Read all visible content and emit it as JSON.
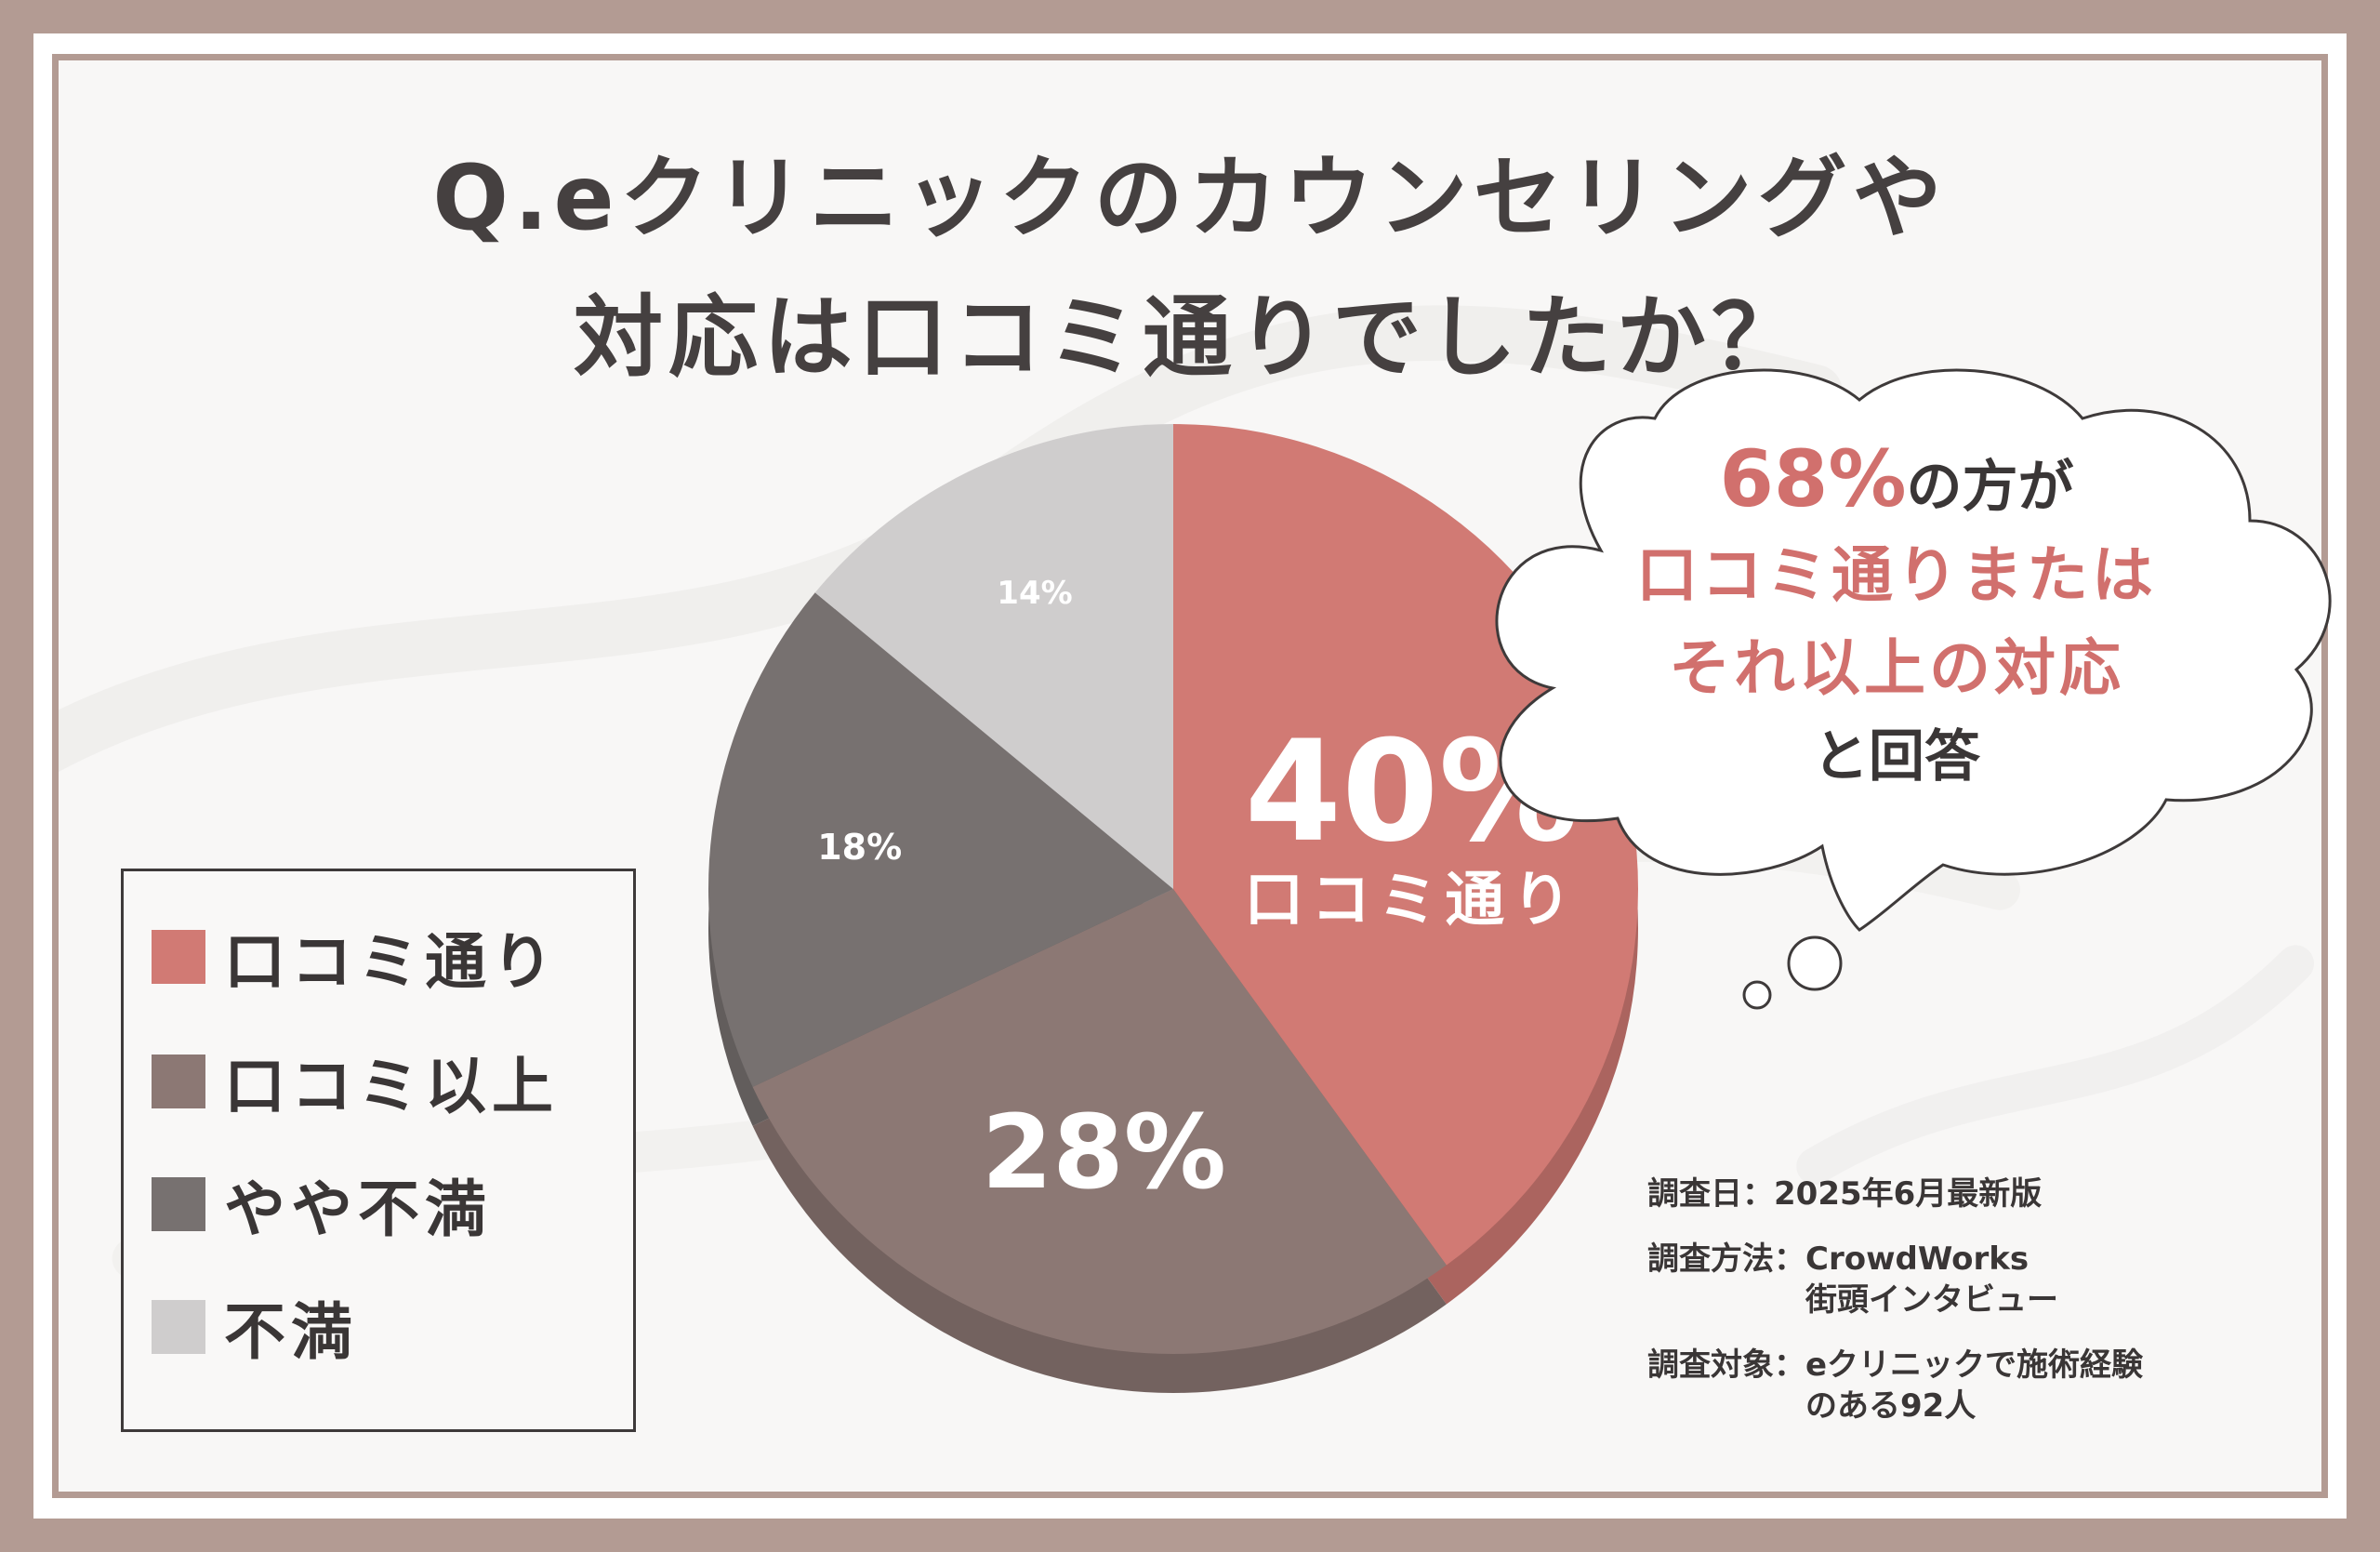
{
  "title": {
    "line1": "Q.eクリニックのカウンセリングや",
    "line2": "対応は口コミ通りでしたか？"
  },
  "chart_data": {
    "type": "pie",
    "categories": [
      "口コミ通り",
      "口コミ以上",
      "やや不満",
      "不満"
    ],
    "values": [
      40,
      28,
      18,
      14
    ],
    "value_labels": [
      "40%",
      "28%",
      "18%",
      "14%"
    ],
    "center_label": "口コミ通り",
    "colors": [
      "#d17a74",
      "#8c7874",
      "#777170",
      "#cfcdcd"
    ]
  },
  "legend": [
    {
      "label": "口コミ通り",
      "color": "#d17a74"
    },
    {
      "label": "口コミ以上",
      "color": "#8c7874"
    },
    {
      "label": "やや不満",
      "color": "#777170"
    },
    {
      "label": "不満",
      "color": "#cfcdcd"
    }
  ],
  "callout": {
    "percent": "68%",
    "line1_rest": "の方が",
    "line2": "口コミ通りまたは",
    "line3": "それ以上の対応",
    "line4": "と回答"
  },
  "survey": [
    {
      "key": "調査日：",
      "value": "2025年6月最新版"
    },
    {
      "key": "調査方法：",
      "value": "CrowdWorks\n街頭インタビュー"
    },
    {
      "key": "調査対象：",
      "value": "eクリニックで施術経験\nのある92人"
    }
  ]
}
